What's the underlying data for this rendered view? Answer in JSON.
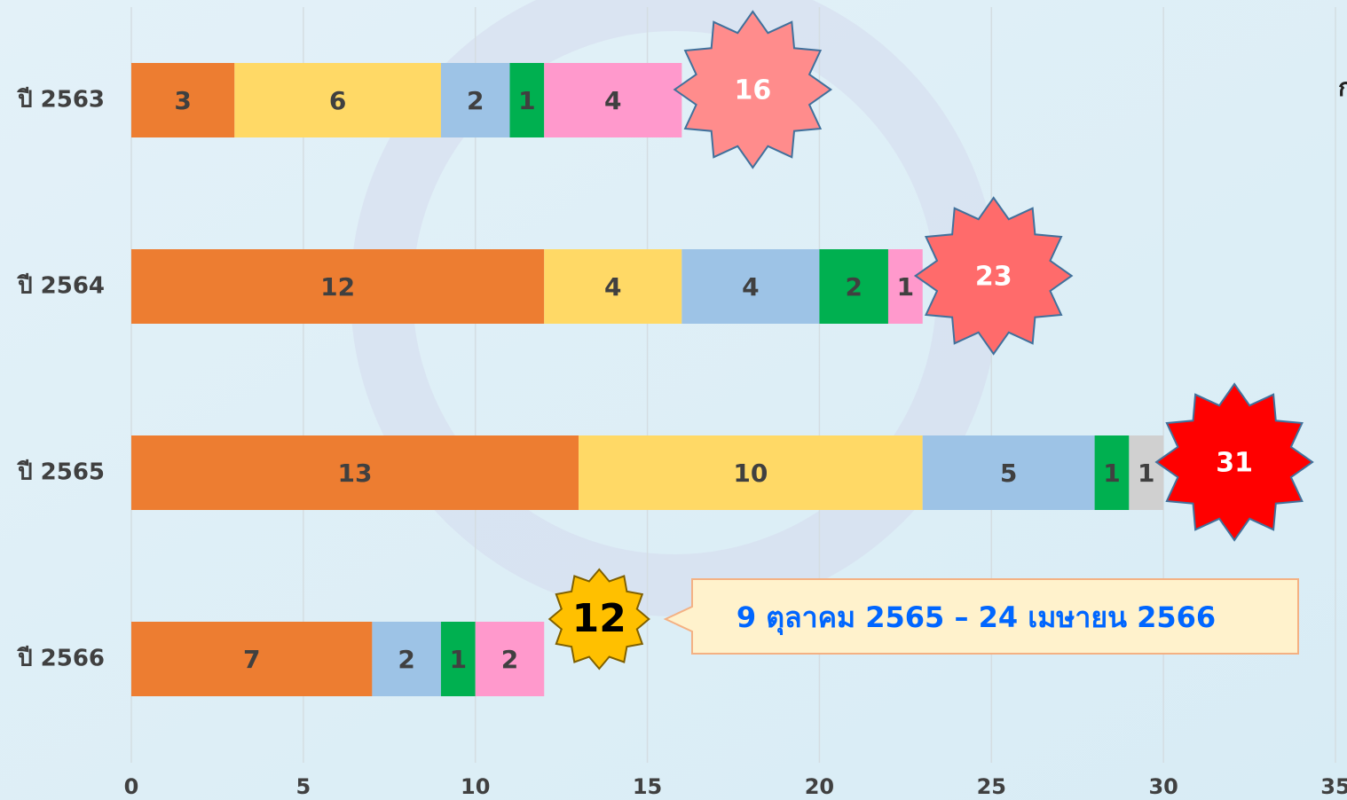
{
  "chart_data": {
    "type": "stacked_bar_horizontal",
    "categories": [
      "ปี 2563",
      "ปี 2564",
      "ปี 2565",
      "ปี 2566"
    ],
    "series": [
      {
        "color": "#ed7d31",
        "values": [
          3,
          12,
          13,
          7
        ]
      },
      {
        "color": "#ffd966",
        "values": [
          6,
          4,
          10,
          null
        ]
      },
      {
        "color": "#9dc3e6",
        "values": [
          2,
          4,
          5,
          2
        ]
      },
      {
        "color": "#00b050",
        "values": [
          1,
          2,
          1,
          1
        ]
      },
      {
        "color": "#ff99cc",
        "values": [
          4,
          1,
          null,
          2
        ]
      },
      {
        "color": "#d0d0d0",
        "values": [
          null,
          null,
          1,
          null
        ]
      }
    ],
    "totals": [
      16,
      23,
      31,
      12
    ],
    "total_colors": [
      "#ff8c8c",
      "#ff6b6b",
      "#ff0000",
      "#ffc000"
    ],
    "callout": "9 ตุลาคม 2565 – 24 เมษายน 2566",
    "side_text": "ก",
    "xlim": [
      0,
      35
    ],
    "xticks": [
      0,
      5,
      10,
      15,
      20,
      25,
      30,
      35
    ],
    "grid": true
  }
}
